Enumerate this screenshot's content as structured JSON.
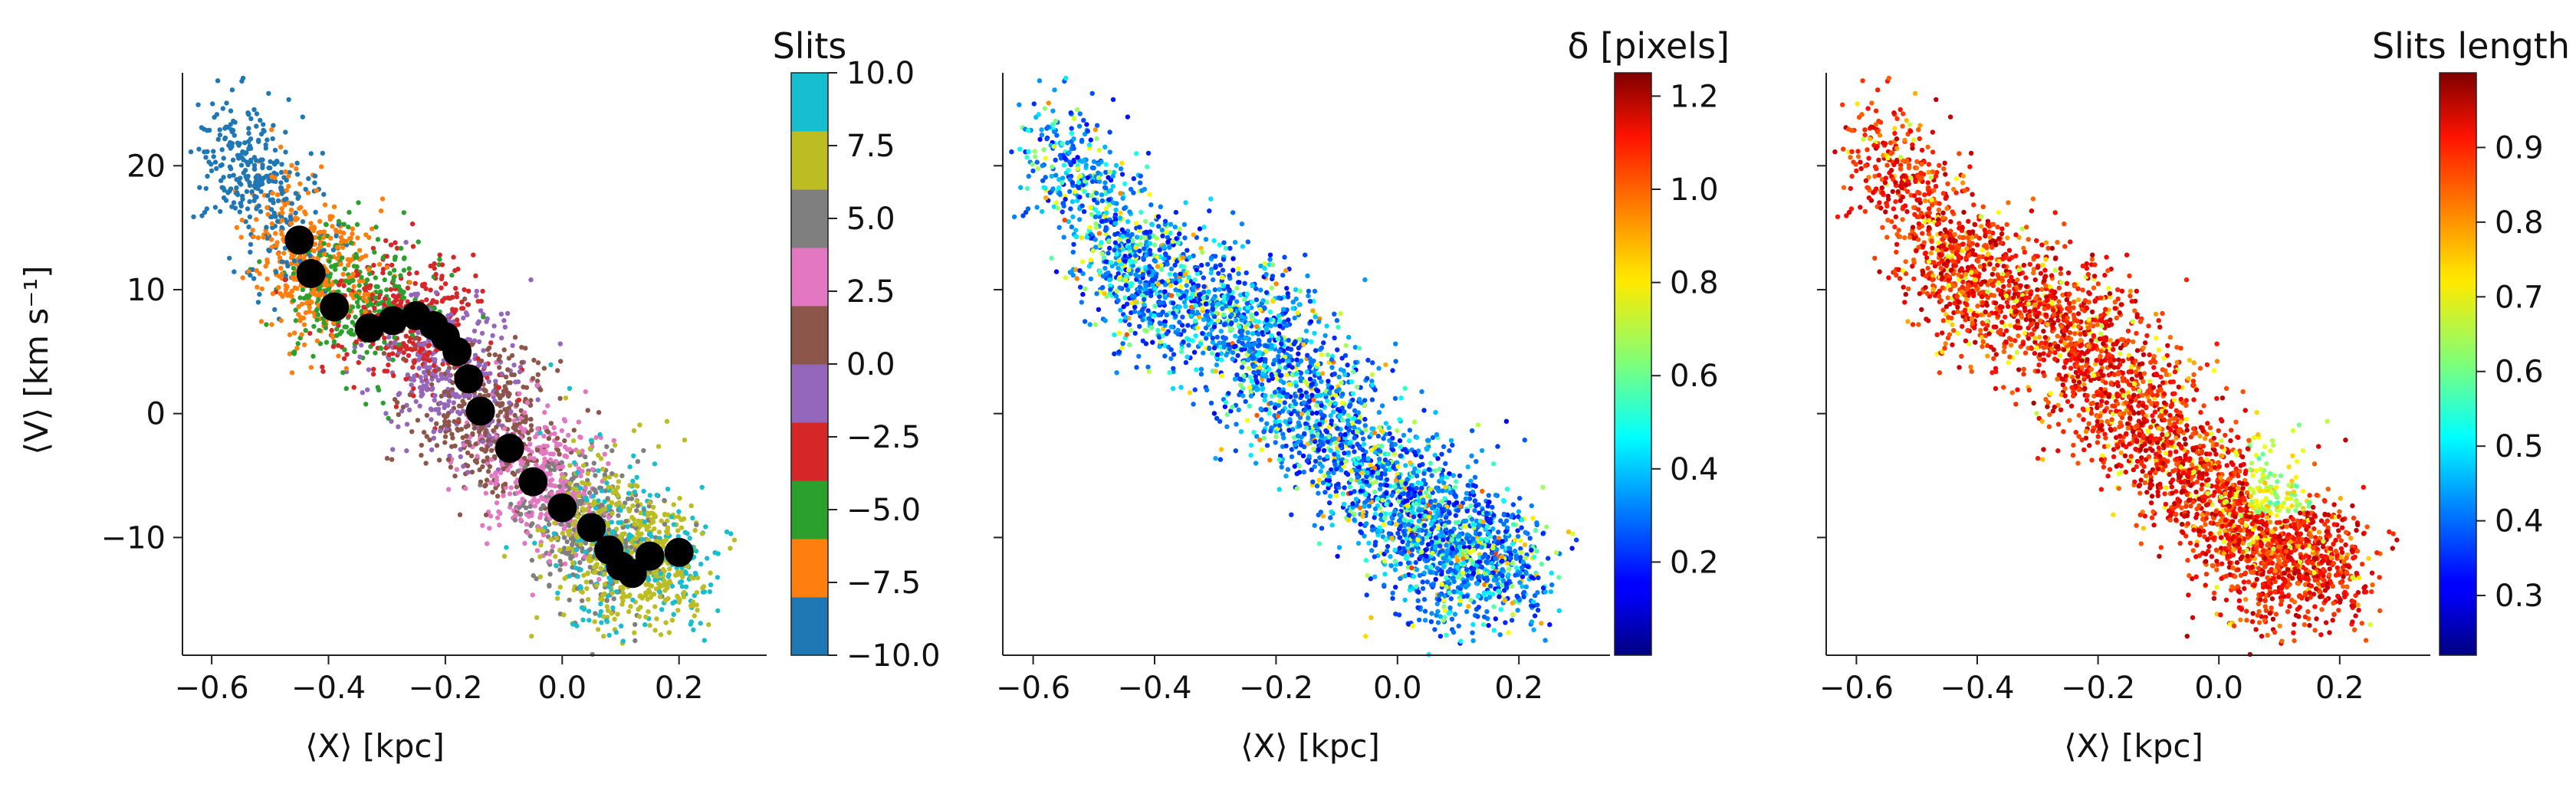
{
  "chart_data": [
    {
      "type": "scatter",
      "id": "slits-panel",
      "title": "",
      "xlabel": "⟨X⟩ [kpc]",
      "ylabel": "⟨V⟩ [km s⁻¹]",
      "xlim": [
        -0.65,
        0.35
      ],
      "ylim": [
        -19.5,
        27.5
      ],
      "xticks": [
        -0.6,
        -0.4,
        -0.2,
        0.0,
        0.2
      ],
      "xtick_labels": [
        "−0.6",
        "−0.4",
        "−0.2",
        "0.0",
        "0.2"
      ],
      "yticks": [
        -10,
        0,
        10,
        20
      ],
      "ytick_labels": [
        "−10",
        "0",
        "10",
        "20"
      ],
      "grid": false,
      "point_cloud": {
        "description_visible": "scattered points colored by slit index",
        "spine": [
          [
            -0.58,
            22.0
          ],
          [
            -0.45,
            14.0
          ],
          [
            -0.38,
            9.0
          ],
          [
            -0.25,
            8.0
          ],
          [
            -0.18,
            3.0
          ],
          [
            -0.1,
            -2.0
          ],
          [
            0.0,
            -7.5
          ],
          [
            0.1,
            -11.5
          ],
          [
            0.22,
            -12.5
          ]
        ]
      },
      "series": [
        {
          "name": "mean points",
          "color": "#000000",
          "x": [
            -0.45,
            -0.43,
            -0.39,
            -0.33,
            -0.29,
            -0.25,
            -0.22,
            -0.2,
            -0.18,
            -0.16,
            -0.14,
            -0.09,
            -0.05,
            0.0,
            0.05,
            0.08,
            0.1,
            0.12,
            0.15,
            0.2
          ],
          "y": [
            14.0,
            11.3,
            8.6,
            6.9,
            7.5,
            7.9,
            7.1,
            6.2,
            5.0,
            2.8,
            0.2,
            -2.8,
            -5.5,
            -7.6,
            -9.2,
            -11.0,
            -12.3,
            -12.9,
            -11.5,
            -11.2
          ]
        }
      ],
      "colorbar": {
        "title": "Slits",
        "type": "discrete",
        "range": [
          -10.0,
          10.0
        ],
        "ticks": [
          -10.0,
          -7.5,
          -5.0,
          -2.5,
          0.0,
          2.5,
          5.0,
          7.5,
          10.0
        ],
        "tick_labels": [
          "−10.0",
          "−7.5",
          "−5.0",
          "−2.5",
          "0.0",
          "2.5",
          "5.0",
          "7.5",
          "10.0"
        ],
        "colors": [
          "#1f77b4",
          "#ff7f0e",
          "#2ca02c",
          "#d62728",
          "#9467bd",
          "#8c564b",
          "#e377c2",
          "#7f7f7f",
          "#bcbd22",
          "#17becf"
        ]
      }
    },
    {
      "type": "scatter",
      "id": "delta-panel",
      "title": "",
      "xlabel": "⟨X⟩ [kpc]",
      "xlim": [
        -0.65,
        0.35
      ],
      "ylim": [
        -19.5,
        27.5
      ],
      "xticks": [
        -0.6,
        -0.4,
        -0.2,
        0.0,
        0.2
      ],
      "xtick_labels": [
        "−0.6",
        "−0.4",
        "−0.2",
        "0.0",
        "0.2"
      ],
      "grid": false,
      "colorbar": {
        "title": "δ [pixels]",
        "type": "continuous",
        "colormap": "jet",
        "range": [
          0.0,
          1.25
        ],
        "ticks": [
          0.2,
          0.4,
          0.6,
          0.8,
          1.0,
          1.2
        ],
        "tick_labels": [
          "0.2",
          "0.4",
          "0.6",
          "0.8",
          "1.0",
          "1.2"
        ]
      }
    },
    {
      "type": "scatter",
      "id": "length-panel",
      "title": "",
      "xlabel": "⟨X⟩ [kpc]",
      "xlim": [
        -0.65,
        0.35
      ],
      "ylim": [
        -19.5,
        27.5
      ],
      "xticks": [
        -0.6,
        -0.4,
        -0.2,
        0.0,
        0.2
      ],
      "xtick_labels": [
        "−0.6",
        "−0.4",
        "−0.2",
        "0.0",
        "0.2"
      ],
      "grid": false,
      "colorbar": {
        "title": "Slits length",
        "type": "continuous",
        "colormap": "jet",
        "range": [
          0.22,
          1.0
        ],
        "ticks": [
          0.3,
          0.4,
          0.5,
          0.6,
          0.7,
          0.8,
          0.9
        ],
        "tick_labels": [
          "0.3",
          "0.4",
          "0.5",
          "0.6",
          "0.7",
          "0.8",
          "0.9"
        ]
      }
    }
  ]
}
